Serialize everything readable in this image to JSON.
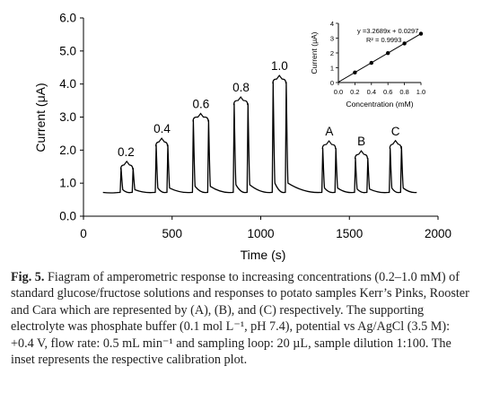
{
  "chart_data": [
    {
      "type": "line",
      "title": "",
      "xlabel": "Time (s)",
      "ylabel": "Current (μA)",
      "xlim": [
        0,
        2000
      ],
      "ylim": [
        0.0,
        6.0
      ],
      "xticks": [
        "0",
        "500",
        "1000",
        "1500",
        "2000"
      ],
      "yticks": [
        "0.0",
        "1.0",
        "2.0",
        "3.0",
        "4.0",
        "5.0",
        "6.0"
      ],
      "grid": false,
      "baseline": 0.72,
      "x": [
        110,
        200,
        212,
        222,
        268,
        280,
        290,
        398,
        410,
        420,
        464,
        476,
        486,
        608,
        620,
        630,
        694,
        706,
        716,
        838,
        850,
        860,
        916,
        928,
        938,
        1058,
        1070,
        1080,
        1132,
        1144,
        1154,
        1338,
        1350,
        1360,
        1412,
        1424,
        1434,
        1522,
        1534,
        1544,
        1592,
        1604,
        1614,
        1718,
        1730,
        1740,
        1782,
        1794,
        1804,
        1880
      ],
      "y": [
        0.72,
        0.72,
        1.45,
        0.8,
        0.72,
        1.45,
        0.8,
        0.72,
        2.15,
        0.85,
        0.72,
        2.15,
        0.85,
        0.72,
        2.9,
        0.9,
        0.72,
        2.9,
        0.9,
        0.72,
        3.4,
        0.95,
        0.72,
        3.4,
        0.95,
        0.72,
        4.05,
        1.0,
        0.72,
        4.05,
        1.0,
        0.72,
        2.05,
        0.85,
        0.72,
        2.05,
        0.85,
        0.72,
        1.75,
        0.82,
        0.72,
        1.75,
        0.82,
        0.72,
        2.05,
        0.85,
        0.72,
        2.1,
        0.85,
        0.72
      ],
      "annotations": [
        {
          "text": "0.2",
          "x": 240,
          "y": 1.82
        },
        {
          "text": "0.4",
          "x": 443,
          "y": 2.52
        },
        {
          "text": "0.6",
          "x": 663,
          "y": 3.27
        },
        {
          "text": "0.8",
          "x": 889,
          "y": 3.77
        },
        {
          "text": "1.0",
          "x": 1106,
          "y": 4.42
        },
        {
          "text": "A",
          "x": 1387,
          "y": 2.44
        },
        {
          "text": "B",
          "x": 1568,
          "y": 2.14
        },
        {
          "text": "C",
          "x": 1760,
          "y": 2.45
        }
      ],
      "bracket_values": [
        {
          "x1": 210,
          "x2": 278,
          "y": 1.55
        },
        {
          "x1": 408,
          "x2": 474,
          "y": 2.25
        },
        {
          "x1": 618,
          "x2": 704,
          "y": 3.0
        },
        {
          "x1": 848,
          "x2": 926,
          "y": 3.5
        },
        {
          "x1": 1068,
          "x2": 1142,
          "y": 4.15
        },
        {
          "x1": 1348,
          "x2": 1422,
          "y": 2.17
        },
        {
          "x1": 1532,
          "x2": 1602,
          "y": 1.87
        },
        {
          "x1": 1728,
          "x2": 1792,
          "y": 2.18
        }
      ]
    },
    {
      "type": "scatter",
      "title": "",
      "xlabel": "Concentration (mM)",
      "ylabel": "Current (μA)",
      "xlim": [
        0.0,
        1.0
      ],
      "ylim": [
        0,
        4
      ],
      "xticks": [
        "0.0",
        "0.2",
        "0.4",
        "0.6",
        "0.8",
        "1.0"
      ],
      "yticks": [
        "0",
        "1",
        "2",
        "3",
        "4"
      ],
      "x": [
        0.2,
        0.4,
        0.6,
        0.8,
        1.0
      ],
      "y": [
        0.68,
        1.33,
        1.99,
        2.64,
        3.3
      ],
      "fit": {
        "slope": 3.2689,
        "intercept": 0.0297,
        "xrange": [
          0.0,
          1.0
        ]
      },
      "annotations": [
        {
          "text": "y =3.2689x + 0.0297"
        },
        {
          "text": "R² = 0.9993"
        }
      ]
    }
  ],
  "caption": {
    "label": "Fig.  5.",
    "text": " Fiagram of amperometric response to increasing concentrations (0.2–1.0 mM) of standard glucose/fructose solutions and responses to potato samples Kerr’s Pinks, Rooster and Cara which are represented by (A), (B), and (C) respectively. The supporting electrolyte was phosphate buffer (0.1 mol L⁻¹, pH 7.4), potential vs Ag/AgCl (3.5 M): +0.4 V, flow rate: 0.5 mL min⁻¹ and sampling loop: 20 µL, sample dilution 1:100. The inset represents the respective calibration plot."
  }
}
